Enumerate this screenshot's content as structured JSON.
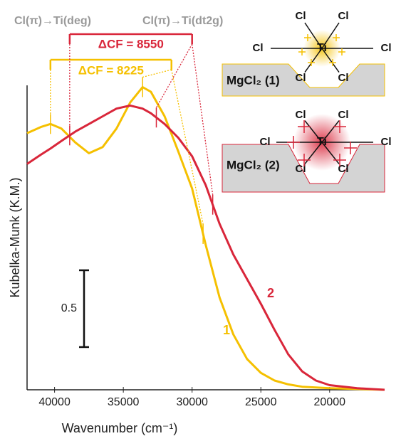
{
  "chart_data": {
    "type": "line",
    "x_label": "Wavenumber (cm⁻¹)",
    "y_label": "Kubelka-Munk (K.M.)",
    "xlim": [
      42000,
      16000
    ],
    "xticks": [
      40000,
      35000,
      30000,
      25000,
      20000
    ],
    "ylim": [
      0,
      2
    ],
    "scale_bar": 0.5,
    "x": [
      42000,
      41000,
      40300,
      39500,
      38500,
      37500,
      36500,
      35500,
      34500,
      33600,
      33000,
      32000,
      31000,
      30000,
      29000,
      28000,
      27000,
      26000,
      25000,
      24000,
      23000,
      22000,
      21000,
      20000,
      18000,
      16000
    ],
    "series": [
      {
        "name": "1",
        "color": "#f5c000",
        "values": [
          1.67,
          1.71,
          1.73,
          1.7,
          1.61,
          1.54,
          1.58,
          1.7,
          1.87,
          1.97,
          1.94,
          1.78,
          1.55,
          1.31,
          0.94,
          0.6,
          0.36,
          0.2,
          0.11,
          0.06,
          0.035,
          0.02,
          0.015,
          0.01,
          0.005,
          0
        ]
      },
      {
        "name": "2",
        "color": "#d9263a",
        "values": [
          1.47,
          1.53,
          1.57,
          1.62,
          1.68,
          1.73,
          1.78,
          1.83,
          1.85,
          1.83,
          1.8,
          1.73,
          1.64,
          1.52,
          1.33,
          1.08,
          0.88,
          0.72,
          0.56,
          0.39,
          0.23,
          0.12,
          0.06,
          0.03,
          0.01,
          0
        ]
      }
    ],
    "annotations": {
      "transition_1": "Cl(π)→Ti(deg)",
      "transition_2": "Cl(π)→Ti(dt2g)",
      "brackets": [
        {
          "label": "ΔCF = 8225",
          "color": "#f5c000",
          "span": [
            40300,
            31500
          ],
          "bands": [
            40300,
            33600,
            29200
          ]
        },
        {
          "label": "ΔCF = 8550",
          "color": "#d9263a",
          "span": [
            38900,
            30000
          ],
          "bands": [
            38900,
            32600,
            28500
          ]
        }
      ]
    },
    "insets": [
      {
        "label": "MgCl₂ (1)",
        "metal": "Ti",
        "ligand": "Cl",
        "color": "#f5c000"
      },
      {
        "label": "MgCl₂ (2)",
        "metal": "Ti",
        "ligand": "Cl",
        "color": "#d9263a"
      }
    ]
  }
}
